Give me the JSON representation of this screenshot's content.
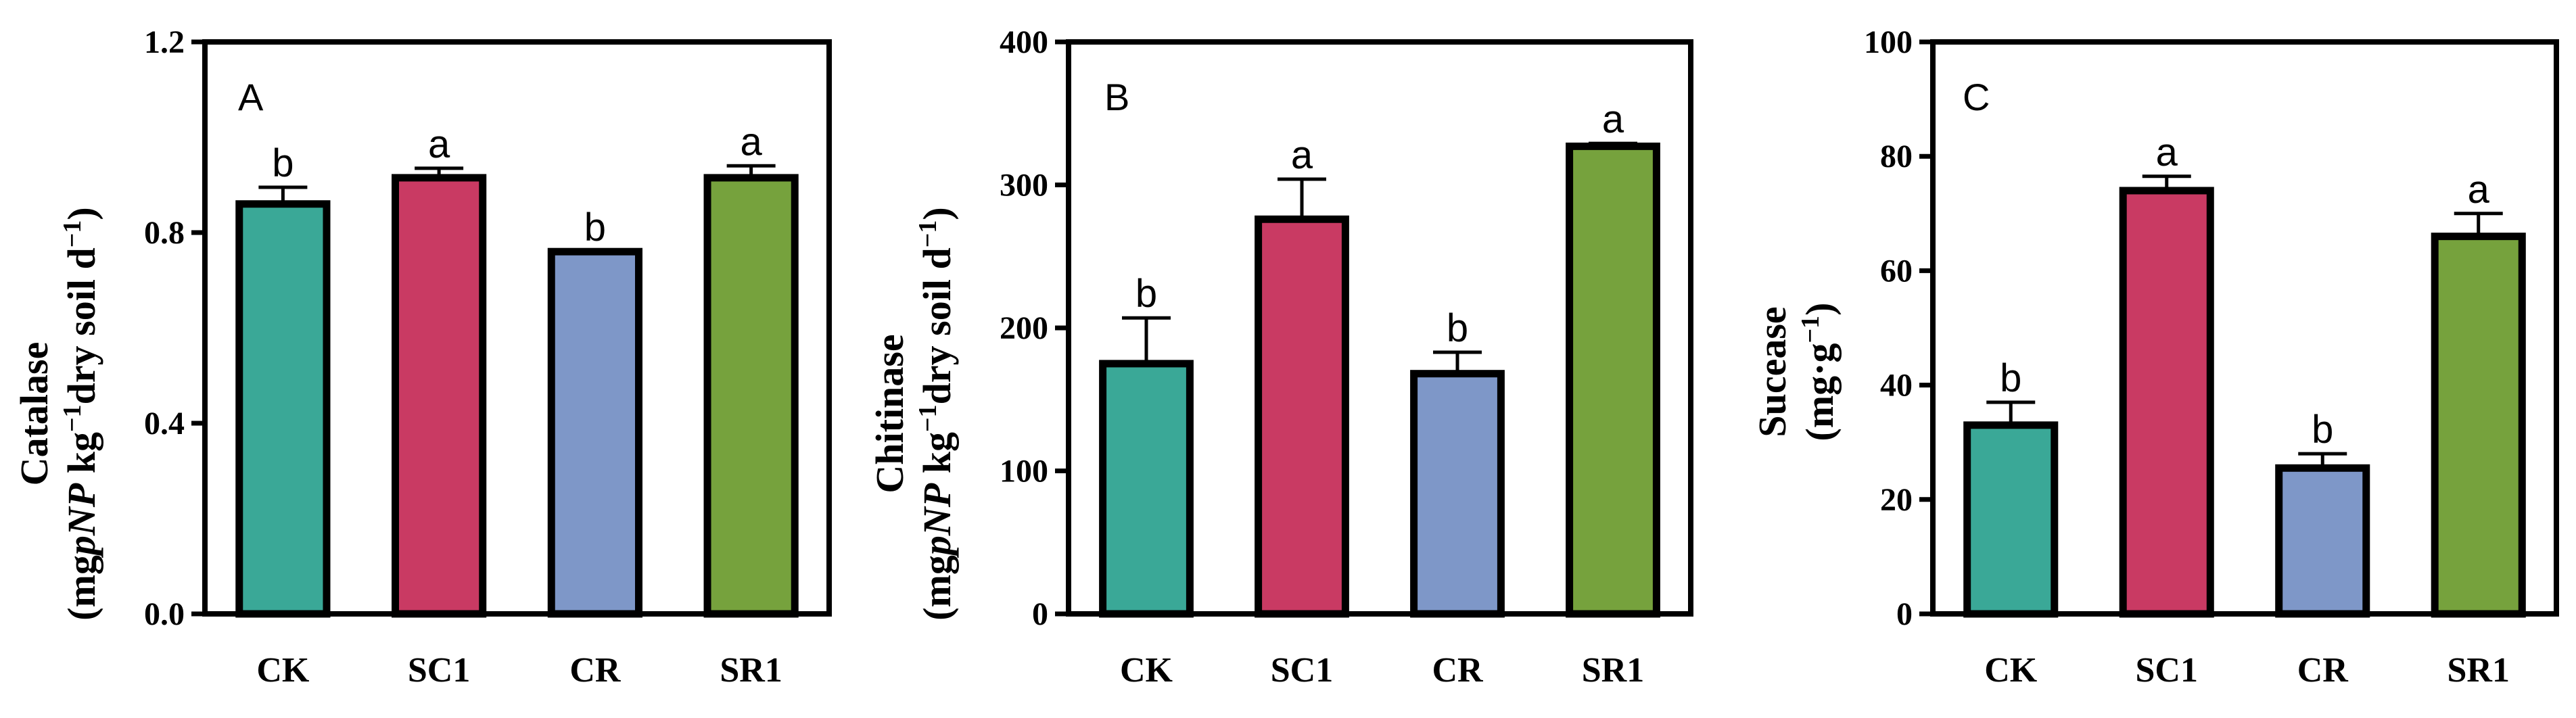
{
  "figure": {
    "colors": {
      "CK": "#3aa897",
      "SC1": "#c93a63",
      "CR": "#7e97c8",
      "SR1": "#76a23d",
      "outline": "#000000",
      "background": "#ffffff"
    }
  },
  "chart_data": [
    {
      "type": "bar",
      "panel_label": "A",
      "title": "",
      "xlabel": "",
      "ylabel_line1": "Catalase",
      "ylabel_line2": {
        "open": "(mg",
        "pnp_p": "p",
        "pnp_np": "NP",
        "kg": " kg",
        "sup1": "−1",
        "dry": "dry soil d",
        "sup2": "−1",
        "close": ")"
      },
      "categories": [
        "CK",
        "SC1",
        "CR",
        "SR1"
      ],
      "values": [
        0.86,
        0.915,
        0.76,
        0.915
      ],
      "errors": [
        0.035,
        0.02,
        0.0,
        0.025
      ],
      "significance": [
        "b",
        "a",
        "b",
        "a"
      ],
      "ylim": [
        0,
        1.2
      ],
      "yticks": [
        0.0,
        0.4,
        0.8,
        1.2
      ],
      "ytick_labels": [
        "0.0",
        "0.4",
        "0.8",
        "1.2"
      ],
      "legend": "none",
      "grid": false
    },
    {
      "type": "bar",
      "panel_label": "B",
      "title": "",
      "xlabel": "",
      "ylabel_line1": "Chitinase",
      "ylabel_line2": {
        "open": "(mg",
        "pnp_p": "p",
        "pnp_np": "NP",
        "kg": " kg",
        "sup1": "−1",
        "dry": "dry soil d",
        "sup2": "−1",
        "close": ")"
      },
      "categories": [
        "CK",
        "SC1",
        "CR",
        "SR1"
      ],
      "values": [
        175,
        276,
        168,
        327
      ],
      "errors": [
        32,
        28,
        15,
        2
      ],
      "significance": [
        "b",
        "a",
        "b",
        "a"
      ],
      "ylim": [
        0,
        400
      ],
      "yticks": [
        0,
        100,
        200,
        300,
        400
      ],
      "ytick_labels": [
        "0",
        "100",
        "200",
        "300",
        "400"
      ],
      "legend": "none",
      "grid": false
    },
    {
      "type": "bar",
      "panel_label": "C",
      "title": "",
      "xlabel": "",
      "ylabel_line1": "Sucease",
      "ylabel_line2": {
        "open": "(mg·g",
        "sup1": "−1",
        "close": ")"
      },
      "categories": [
        "CK",
        "SC1",
        "CR",
        "SR1"
      ],
      "values": [
        33,
        74,
        25.5,
        66
      ],
      "errors": [
        4,
        2.5,
        2.5,
        4
      ],
      "significance": [
        "b",
        "a",
        "b",
        "a"
      ],
      "ylim": [
        0,
        100
      ],
      "yticks": [
        0,
        20,
        40,
        60,
        80,
        100
      ],
      "ytick_labels": [
        "0",
        "20",
        "40",
        "60",
        "80",
        "100"
      ],
      "legend": "none",
      "grid": false
    }
  ]
}
